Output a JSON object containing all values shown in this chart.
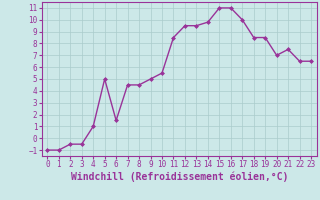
{
  "x": [
    0,
    1,
    2,
    3,
    4,
    5,
    6,
    7,
    8,
    9,
    10,
    11,
    12,
    13,
    14,
    15,
    16,
    17,
    18,
    19,
    20,
    21,
    22,
    23
  ],
  "y": [
    -1,
    -1,
    -0.5,
    -0.5,
    1,
    5,
    1.5,
    4.5,
    4.5,
    5,
    5.5,
    8.5,
    9.5,
    9.5,
    9.8,
    11,
    11,
    10,
    8.5,
    8.5,
    7,
    7.5,
    6.5,
    6.5
  ],
  "line_color": "#993399",
  "marker": "D",
  "marker_size": 2.0,
  "bg_color": "#cce8e8",
  "grid_color": "#aacccc",
  "tick_color": "#993399",
  "label_color": "#993399",
  "xlabel": "Windchill (Refroidissement éolien,°C)",
  "ylabel": "",
  "ylim": [
    -1.5,
    11.5
  ],
  "xlim": [
    -0.5,
    23.5
  ],
  "yticks": [
    -1,
    0,
    1,
    2,
    3,
    4,
    5,
    6,
    7,
    8,
    9,
    10,
    11
  ],
  "xticks": [
    0,
    1,
    2,
    3,
    4,
    5,
    6,
    7,
    8,
    9,
    10,
    11,
    12,
    13,
    14,
    15,
    16,
    17,
    18,
    19,
    20,
    21,
    22,
    23
  ],
  "tick_fontsize": 5.5,
  "xlabel_fontsize": 7.0,
  "linewidth": 1.0
}
